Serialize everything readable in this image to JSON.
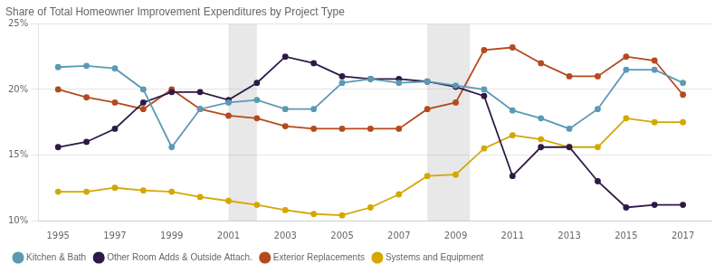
{
  "chart_data": {
    "type": "line",
    "title": "Share of Total Homeowner Improvement Expenditures by Project Type",
    "x": [
      1995,
      1996,
      1997,
      1998,
      1999,
      2000,
      2001,
      2002,
      2003,
      2004,
      2005,
      2006,
      2007,
      2008,
      2009,
      2010,
      2011,
      2012,
      2013,
      2014,
      2015,
      2016,
      2017
    ],
    "series": [
      {
        "name": "Kitchen & Bath",
        "color": "#5b9ab5",
        "values": [
          21.7,
          21.8,
          21.6,
          20.0,
          15.6,
          18.5,
          19.0,
          19.2,
          18.5,
          18.5,
          20.5,
          20.8,
          20.5,
          20.6,
          20.3,
          20.0,
          18.4,
          17.8,
          17.0,
          18.5,
          21.5,
          21.5,
          20.5
        ]
      },
      {
        "name": "Other Room Adds & Outside Attach.",
        "color": "#2e1a47",
        "values": [
          15.6,
          16.0,
          17.0,
          19.0,
          19.8,
          19.8,
          19.2,
          20.5,
          22.5,
          22.0,
          21.0,
          20.8,
          20.8,
          20.6,
          20.2,
          19.5,
          13.4,
          15.6,
          15.6,
          13.0,
          11.0,
          11.2,
          11.2
        ]
      },
      {
        "name": "Exterior Replacements",
        "color": "#b54a1e",
        "values": [
          20.0,
          19.4,
          19.0,
          18.5,
          20.0,
          18.5,
          18.0,
          17.8,
          17.2,
          17.0,
          17.0,
          17.0,
          17.0,
          18.5,
          19.0,
          23.0,
          23.2,
          22.0,
          21.0,
          21.0,
          22.5,
          22.2,
          19.6
        ]
      },
      {
        "name": "Systems and Equipment",
        "color": "#d4a800",
        "values": [
          12.2,
          12.2,
          12.5,
          12.3,
          12.2,
          11.8,
          11.5,
          11.2,
          10.8,
          10.5,
          10.4,
          11.0,
          12.0,
          13.4,
          13.5,
          15.5,
          16.5,
          16.2,
          15.6,
          15.6,
          17.8,
          17.5,
          17.5
        ]
      }
    ],
    "shaded_spans": [
      [
        2001,
        2002
      ],
      [
        2008,
        2009.5
      ]
    ],
    "xlim": [
      1994.3,
      2018.0
    ],
    "xticks": [
      1995,
      1997,
      1999,
      2001,
      2003,
      2005,
      2007,
      2009,
      2011,
      2013,
      2015,
      2017
    ],
    "ylim": [
      10,
      25
    ],
    "yticks": [
      {
        "value": 10,
        "label": "10%"
      },
      {
        "value": 15,
        "label": "15%"
      },
      {
        "value": 20,
        "label": "20%"
      },
      {
        "value": 25,
        "label": "25%"
      }
    ],
    "grid": "y",
    "legend": "bottom",
    "marker": "circle"
  }
}
